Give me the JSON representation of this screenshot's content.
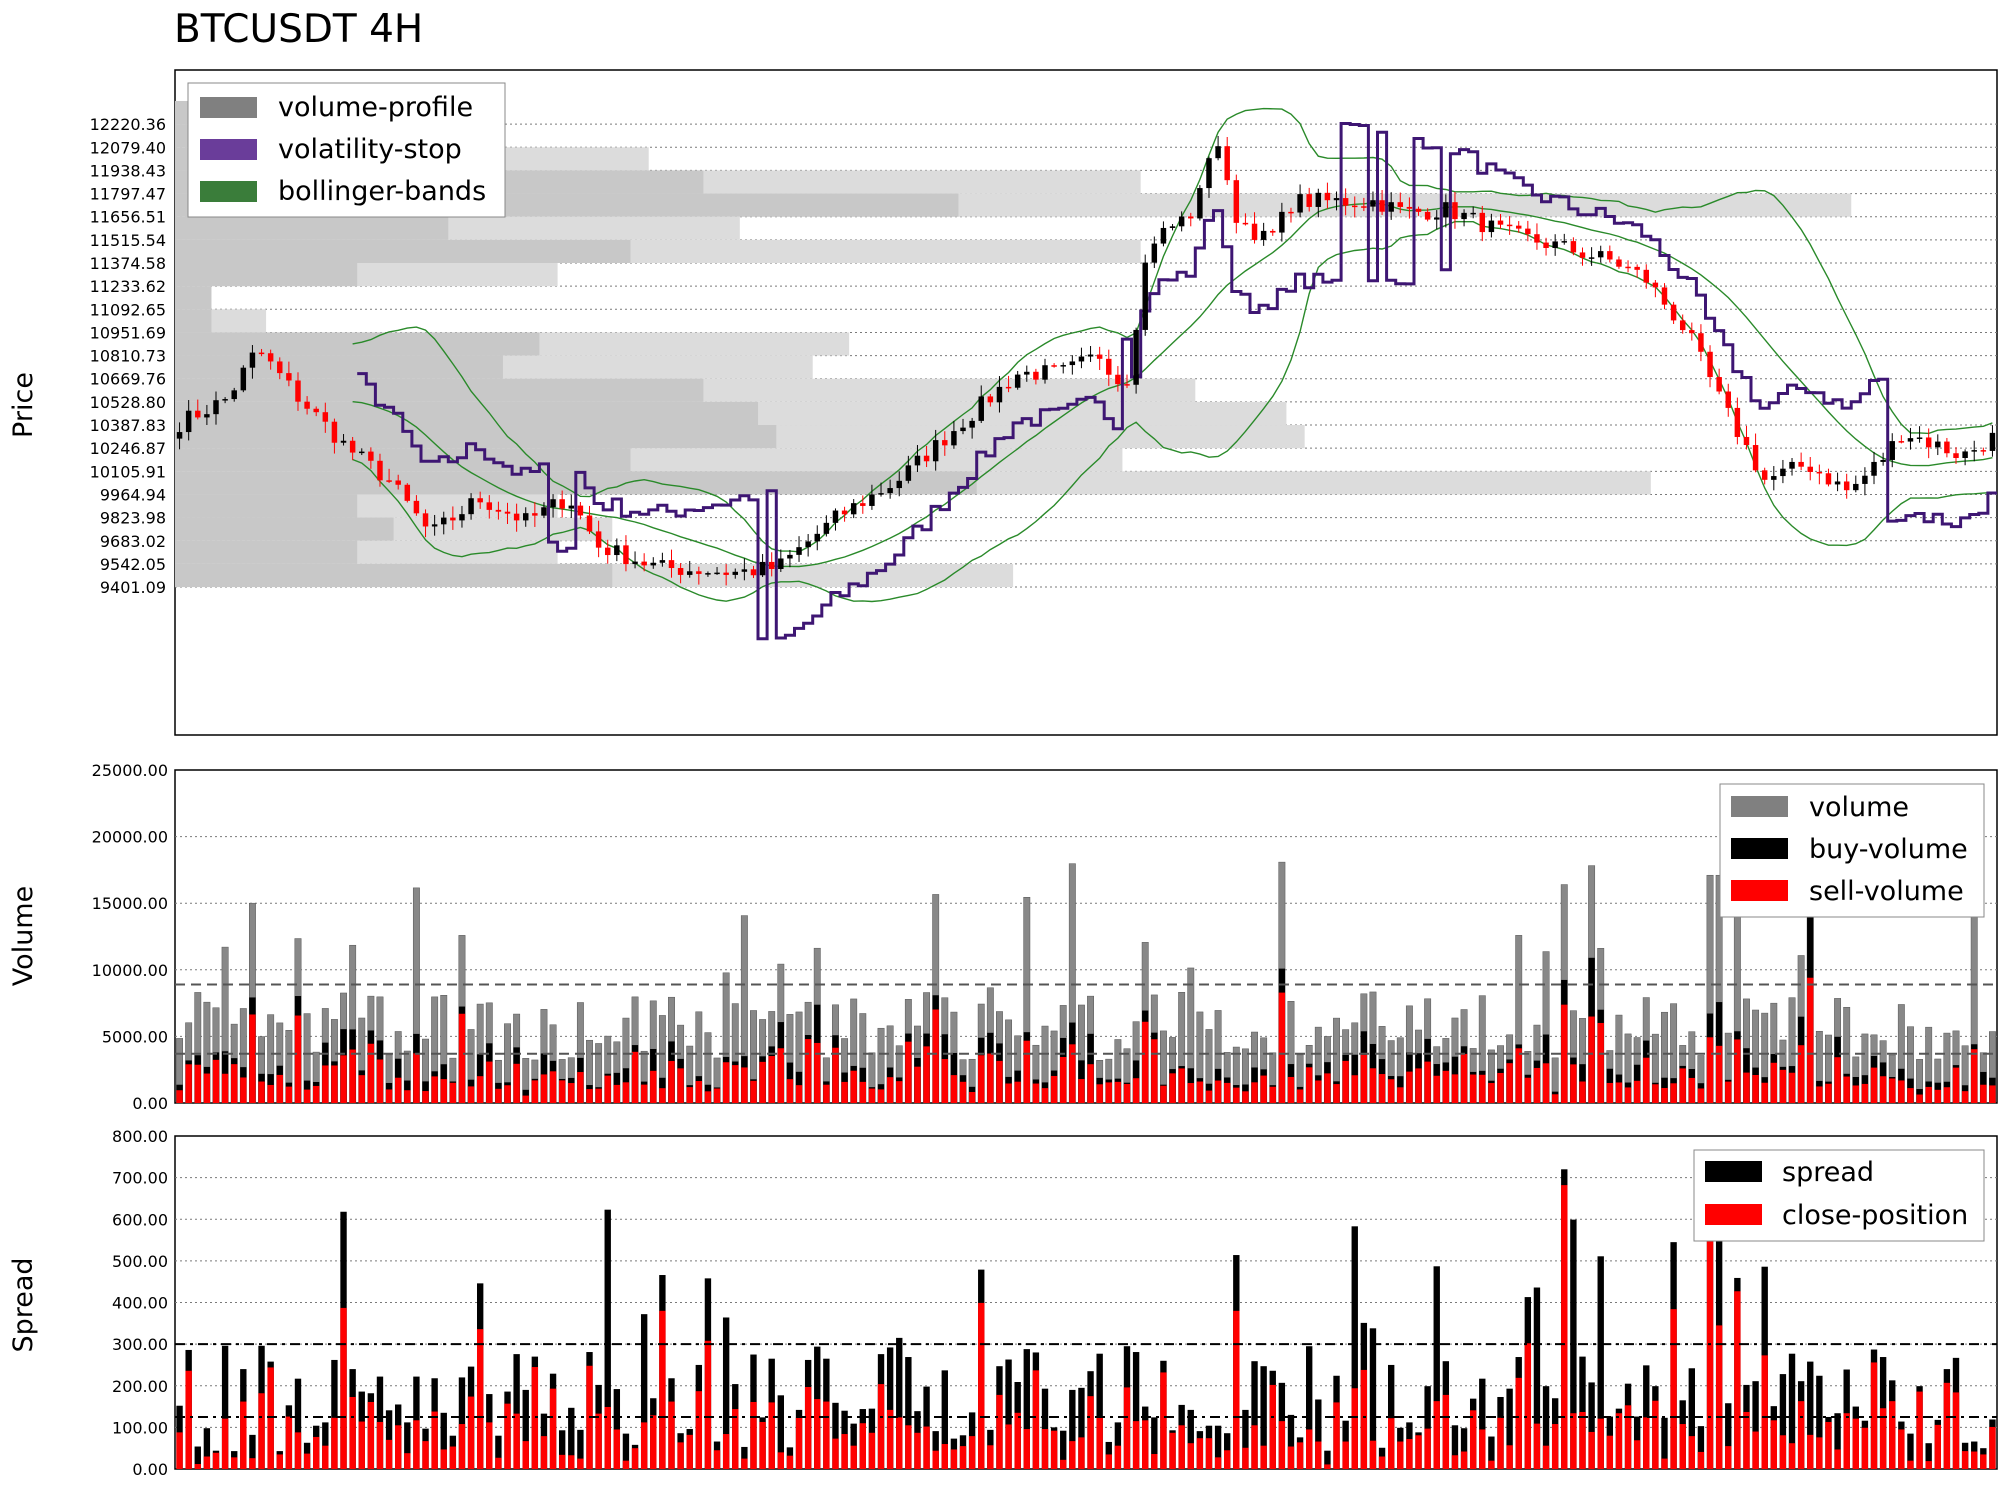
{
  "title": "BTCUSDT 4H",
  "colors": {
    "background": "#ffffff",
    "volume_profile_a": "#c8c8c8",
    "volume_profile_b": "#dcdcdc",
    "volume_profile_legend": "#808080",
    "volatility_stop": "#3e1673",
    "volatility_stop_legend": "#6a3d9a",
    "bollinger": "#2a8a2a",
    "bollinger_legend": "#3a7d3a",
    "candle_up": "#000000",
    "candle_down": "#ff0000",
    "volume": "#888888",
    "buy_volume": "#000000",
    "sell_volume": "#ff0000",
    "spread": "#000000",
    "close_position": "#ff0000",
    "grid": "#7a7a7a",
    "axes": "#000000"
  },
  "chart_data": [
    {
      "panel": "price",
      "type": "candlestick",
      "ylabel": "Price",
      "ylim": [
        8500,
        12550
      ],
      "grid": true,
      "legend_position": "top-left",
      "legend": [
        "volume-profile",
        "volatility-stop",
        "bollinger-bands"
      ],
      "tick_labels": [
        "12220.36",
        "12079.40",
        "11938.43",
        "11797.47",
        "11656.51",
        "11515.54",
        "11374.58",
        "11233.62",
        "11092.65",
        "10951.69",
        "10810.73",
        "10669.76",
        "10528.80",
        "10387.83",
        "10246.87",
        "10105.91",
        "9964.94",
        "9823.98",
        "9683.02",
        "9542.05",
        "9401.09"
      ],
      "candles": [],
      "volume_profile": {
        "prices": [
          12220.36,
          12079.4,
          11938.43,
          11797.47,
          11656.51,
          11515.54,
          11374.58,
          11233.62,
          11092.65,
          10951.69,
          10810.73,
          10669.76,
          10528.8,
          10387.83,
          10246.87,
          10105.91,
          9964.94,
          9823.98,
          9683.02,
          9542.05,
          9401.09
        ],
        "total": [
          0.13,
          0.14,
          0.26,
          0.53,
          0.92,
          0.31,
          0.53,
          0.21,
          0.02,
          0.05,
          0.37,
          0.35,
          0.56,
          0.61,
          0.62,
          0.52,
          0.81,
          0.21,
          0.24,
          0.21,
          0.46
        ],
        "part": [
          0.05,
          0.14,
          0.05,
          0.29,
          0.43,
          0.15,
          0.25,
          0.1,
          0.02,
          0.02,
          0.2,
          0.18,
          0.29,
          0.32,
          0.33,
          0.25,
          0.44,
          0.1,
          0.12,
          0.1,
          0.24
        ]
      },
      "volatility_stop": [],
      "bollinger": {
        "upper": [],
        "middle": [],
        "lower": []
      }
    },
    {
      "panel": "volume",
      "type": "bar",
      "ylabel": "Volume",
      "ylim": [
        0,
        25000
      ],
      "yticks": [
        "25000.00",
        "20000.00",
        "15000.00",
        "10000.00",
        "5000.00",
        "0.00"
      ],
      "grid": true,
      "legend_position": "top-right",
      "legend": [
        "volume",
        "buy-volume",
        "sell-volume"
      ],
      "reference_lines": [
        8900,
        3700
      ],
      "series": [
        {
          "name": "volume",
          "values": []
        },
        {
          "name": "buy-volume",
          "values": []
        },
        {
          "name": "sell-volume",
          "values": []
        }
      ]
    },
    {
      "panel": "spread",
      "type": "bar",
      "ylabel": "Spread",
      "ylim": [
        0,
        800
      ],
      "yticks": [
        "800.00",
        "700.00",
        "600.00",
        "500.00",
        "400.00",
        "300.00",
        "200.00",
        "100.00",
        "0.00"
      ],
      "grid": true,
      "legend_position": "top-right",
      "legend": [
        "spread",
        "close-position"
      ],
      "reference_lines": [
        300,
        125
      ],
      "series": [
        {
          "name": "spread",
          "values": []
        },
        {
          "name": "close-position",
          "values": []
        }
      ]
    }
  ]
}
